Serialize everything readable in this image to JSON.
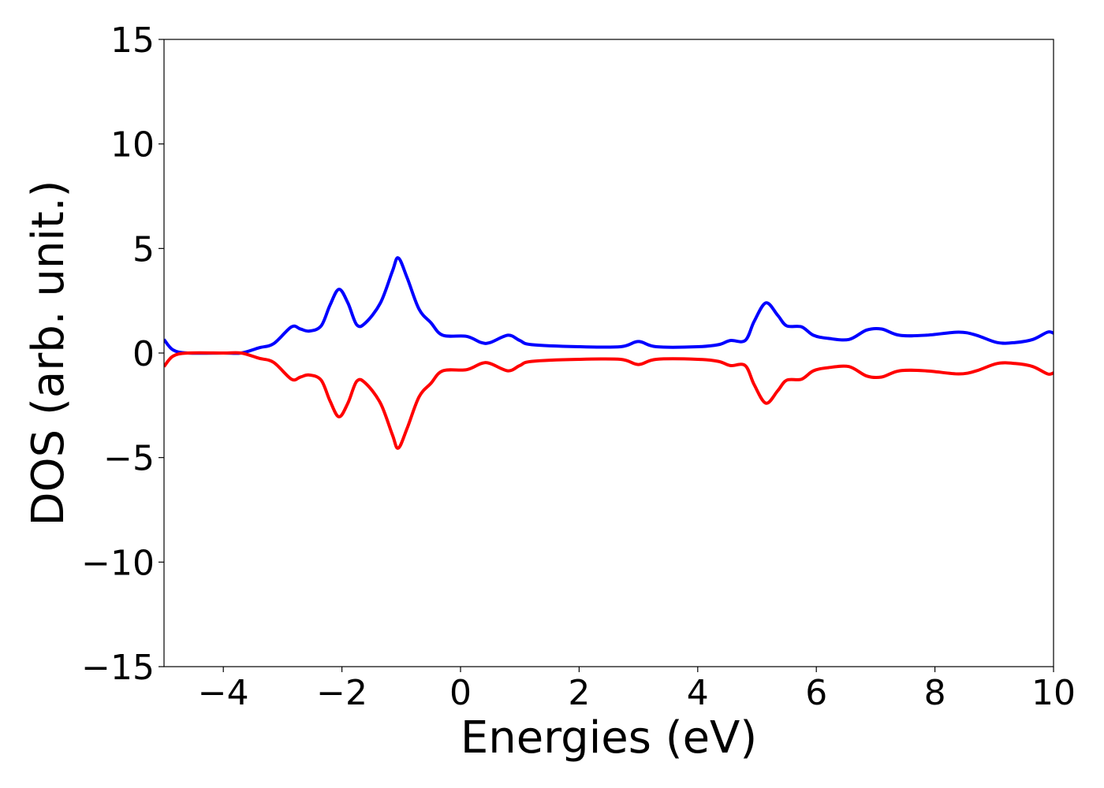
{
  "chart_data": {
    "type": "line",
    "xlabel": "Energies (eV)",
    "ylabel": "DOS (arb. unit.)",
    "xlim": [
      -5,
      10
    ],
    "ylim": [
      -15,
      15
    ],
    "xticks": [
      -4,
      -2,
      0,
      2,
      4,
      6,
      8,
      10
    ],
    "xtick_labels": [
      "−4",
      "−2",
      "0",
      "2",
      "4",
      "6",
      "8",
      "10"
    ],
    "yticks": [
      15,
      10,
      5,
      0,
      -5,
      -10,
      -15
    ],
    "ytick_labels": [
      "15",
      "10",
      "5",
      "0",
      "−5",
      "−10",
      "−15"
    ],
    "grid": false,
    "legend": "none",
    "series": [
      {
        "color": "#0000ff",
        "points": [
          [
            -5.0,
            0.65
          ],
          [
            -4.85,
            0.15
          ],
          [
            -4.6,
            0.0
          ],
          [
            -4.0,
            0.0
          ],
          [
            -3.7,
            0.0
          ],
          [
            -3.4,
            0.25
          ],
          [
            -3.15,
            0.45
          ],
          [
            -2.85,
            1.25
          ],
          [
            -2.7,
            1.15
          ],
          [
            -2.55,
            1.05
          ],
          [
            -2.35,
            1.3
          ],
          [
            -2.2,
            2.3
          ],
          [
            -2.05,
            3.05
          ],
          [
            -1.9,
            2.4
          ],
          [
            -1.75,
            1.35
          ],
          [
            -1.6,
            1.45
          ],
          [
            -1.35,
            2.4
          ],
          [
            -1.15,
            3.9
          ],
          [
            -1.05,
            4.55
          ],
          [
            -0.9,
            3.6
          ],
          [
            -0.7,
            2.1
          ],
          [
            -0.5,
            1.45
          ],
          [
            -0.3,
            0.85
          ],
          [
            0.1,
            0.8
          ],
          [
            0.35,
            0.5
          ],
          [
            0.5,
            0.5
          ],
          [
            0.8,
            0.85
          ],
          [
            1.0,
            0.6
          ],
          [
            1.2,
            0.4
          ],
          [
            2.0,
            0.3
          ],
          [
            2.7,
            0.3
          ],
          [
            3.0,
            0.55
          ],
          [
            3.3,
            0.3
          ],
          [
            4.0,
            0.3
          ],
          [
            4.35,
            0.4
          ],
          [
            4.55,
            0.6
          ],
          [
            4.8,
            0.6
          ],
          [
            4.95,
            1.5
          ],
          [
            5.15,
            2.4
          ],
          [
            5.35,
            1.8
          ],
          [
            5.5,
            1.3
          ],
          [
            5.75,
            1.25
          ],
          [
            5.95,
            0.85
          ],
          [
            6.2,
            0.7
          ],
          [
            6.55,
            0.65
          ],
          [
            6.85,
            1.1
          ],
          [
            7.1,
            1.15
          ],
          [
            7.4,
            0.85
          ],
          [
            7.85,
            0.85
          ],
          [
            8.4,
            1.0
          ],
          [
            8.7,
            0.85
          ],
          [
            9.05,
            0.5
          ],
          [
            9.35,
            0.5
          ],
          [
            9.65,
            0.65
          ],
          [
            9.9,
            1.0
          ],
          [
            10.0,
            0.95
          ]
        ]
      },
      {
        "color": "#ff0000",
        "points": [
          [
            -5.0,
            -0.65
          ],
          [
            -4.85,
            -0.15
          ],
          [
            -4.6,
            0.0
          ],
          [
            -4.0,
            0.0
          ],
          [
            -3.7,
            0.0
          ],
          [
            -3.4,
            -0.25
          ],
          [
            -3.15,
            -0.45
          ],
          [
            -2.85,
            -1.25
          ],
          [
            -2.7,
            -1.15
          ],
          [
            -2.55,
            -1.05
          ],
          [
            -2.35,
            -1.3
          ],
          [
            -2.2,
            -2.3
          ],
          [
            -2.05,
            -3.05
          ],
          [
            -1.9,
            -2.4
          ],
          [
            -1.75,
            -1.35
          ],
          [
            -1.6,
            -1.45
          ],
          [
            -1.35,
            -2.4
          ],
          [
            -1.15,
            -3.9
          ],
          [
            -1.05,
            -4.55
          ],
          [
            -0.9,
            -3.6
          ],
          [
            -0.7,
            -2.1
          ],
          [
            -0.5,
            -1.45
          ],
          [
            -0.3,
            -0.85
          ],
          [
            0.1,
            -0.8
          ],
          [
            0.35,
            -0.5
          ],
          [
            0.5,
            -0.5
          ],
          [
            0.8,
            -0.85
          ],
          [
            1.0,
            -0.6
          ],
          [
            1.2,
            -0.4
          ],
          [
            2.0,
            -0.3
          ],
          [
            2.7,
            -0.3
          ],
          [
            3.0,
            -0.55
          ],
          [
            3.3,
            -0.3
          ],
          [
            4.0,
            -0.3
          ],
          [
            4.35,
            -0.4
          ],
          [
            4.55,
            -0.6
          ],
          [
            4.8,
            -0.6
          ],
          [
            4.95,
            -1.5
          ],
          [
            5.15,
            -2.4
          ],
          [
            5.35,
            -1.8
          ],
          [
            5.5,
            -1.3
          ],
          [
            5.75,
            -1.25
          ],
          [
            5.95,
            -0.85
          ],
          [
            6.2,
            -0.7
          ],
          [
            6.55,
            -0.65
          ],
          [
            6.85,
            -1.1
          ],
          [
            7.1,
            -1.15
          ],
          [
            7.4,
            -0.85
          ],
          [
            7.85,
            -0.85
          ],
          [
            8.4,
            -1.0
          ],
          [
            8.7,
            -0.85
          ],
          [
            9.05,
            -0.5
          ],
          [
            9.35,
            -0.5
          ],
          [
            9.65,
            -0.65
          ],
          [
            9.9,
            -1.0
          ],
          [
            10.0,
            -0.95
          ]
        ]
      }
    ]
  }
}
